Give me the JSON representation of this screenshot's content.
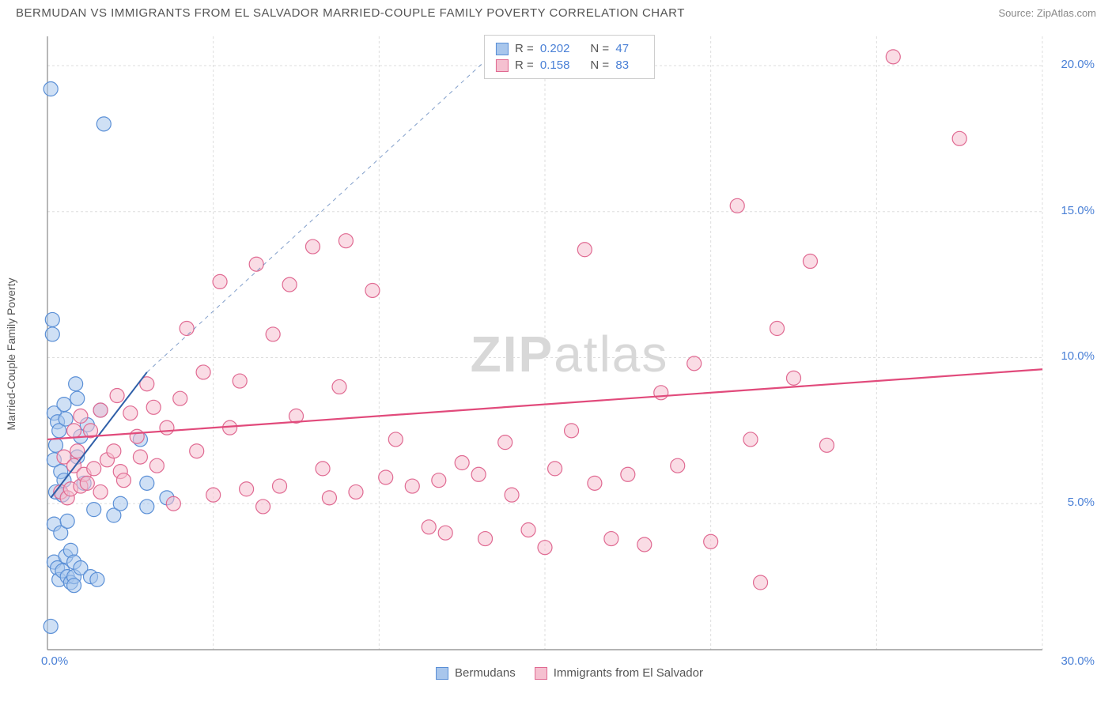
{
  "header": {
    "title": "BERMUDAN VS IMMIGRANTS FROM EL SALVADOR MARRIED-COUPLE FAMILY POVERTY CORRELATION CHART",
    "source": "Source: ZipAtlas.com"
  },
  "chart": {
    "type": "scatter",
    "watermark": "ZIPatlas",
    "y_axis_label": "Married-Couple Family Poverty",
    "background_color": "#ffffff",
    "grid_color": "#dddddd",
    "axis_line_color": "#888888",
    "tick_label_color": "#4a80d6",
    "xlim": [
      0,
      30
    ],
    "ylim": [
      0,
      21
    ],
    "x_ticks": [
      0,
      5,
      10,
      15,
      20,
      25,
      30
    ],
    "x_tick_labels": [
      "0.0%",
      "",
      "",
      "",
      "",
      "",
      "30.0%"
    ],
    "y_ticks": [
      5,
      10,
      15,
      20
    ],
    "y_tick_labels": [
      "5.0%",
      "10.0%",
      "15.0%",
      "20.0%"
    ],
    "marker_radius": 9,
    "marker_stroke_width": 1.2,
    "series": [
      {
        "name": "Bermudans",
        "fill_color": "#a8c6ec",
        "stroke_color": "#5a8fd6",
        "fill_opacity": 0.55,
        "R": "0.202",
        "N": "47",
        "trend": {
          "x1": 0.1,
          "y1": 5.2,
          "x2": 3.0,
          "y2": 9.5,
          "dash_x2": 14.0,
          "dash_y2": 21.0,
          "color": "#2f5fa8",
          "width": 2
        },
        "points": [
          [
            0.1,
            0.8
          ],
          [
            0.1,
            19.2
          ],
          [
            0.15,
            11.3
          ],
          [
            0.15,
            10.8
          ],
          [
            0.2,
            8.1
          ],
          [
            0.2,
            4.3
          ],
          [
            0.2,
            3.0
          ],
          [
            0.2,
            6.5
          ],
          [
            0.25,
            5.4
          ],
          [
            0.25,
            7.0
          ],
          [
            0.3,
            7.8
          ],
          [
            0.3,
            2.8
          ],
          [
            0.35,
            7.5
          ],
          [
            0.35,
            2.4
          ],
          [
            0.4,
            6.1
          ],
          [
            0.4,
            4.0
          ],
          [
            0.45,
            5.3
          ],
          [
            0.45,
            2.7
          ],
          [
            0.5,
            8.4
          ],
          [
            0.5,
            5.8
          ],
          [
            0.55,
            7.9
          ],
          [
            0.55,
            3.2
          ],
          [
            0.6,
            4.4
          ],
          [
            0.6,
            2.5
          ],
          [
            0.7,
            2.3
          ],
          [
            0.7,
            3.4
          ],
          [
            0.8,
            2.5
          ],
          [
            0.8,
            3.0
          ],
          [
            0.8,
            2.2
          ],
          [
            0.85,
            9.1
          ],
          [
            0.9,
            8.6
          ],
          [
            0.9,
            6.6
          ],
          [
            1.0,
            2.8
          ],
          [
            1.0,
            7.3
          ],
          [
            1.1,
            5.7
          ],
          [
            1.2,
            7.7
          ],
          [
            1.3,
            2.5
          ],
          [
            1.4,
            4.8
          ],
          [
            1.5,
            2.4
          ],
          [
            1.6,
            8.2
          ],
          [
            1.7,
            18.0
          ],
          [
            2.0,
            4.6
          ],
          [
            2.2,
            5.0
          ],
          [
            2.8,
            7.2
          ],
          [
            3.0,
            5.7
          ],
          [
            3.0,
            4.9
          ],
          [
            3.6,
            5.2
          ]
        ]
      },
      {
        "name": "Immigrants from El Salvador",
        "fill_color": "#f5c0d0",
        "stroke_color": "#e06a92",
        "fill_opacity": 0.55,
        "R": "0.158",
        "N": "83",
        "trend": {
          "x1": 0.0,
          "y1": 7.2,
          "x2": 30.0,
          "y2": 9.6,
          "color": "#e14a7b",
          "width": 2.2
        },
        "points": [
          [
            0.4,
            5.4
          ],
          [
            0.5,
            6.6
          ],
          [
            0.6,
            5.2
          ],
          [
            0.7,
            5.5
          ],
          [
            0.8,
            7.5
          ],
          [
            0.8,
            6.3
          ],
          [
            0.9,
            6.8
          ],
          [
            1.0,
            5.6
          ],
          [
            1.0,
            8.0
          ],
          [
            1.1,
            6.0
          ],
          [
            1.2,
            5.7
          ],
          [
            1.3,
            7.5
          ],
          [
            1.4,
            6.2
          ],
          [
            1.6,
            8.2
          ],
          [
            1.6,
            5.4
          ],
          [
            1.8,
            6.5
          ],
          [
            2.0,
            6.8
          ],
          [
            2.1,
            8.7
          ],
          [
            2.2,
            6.1
          ],
          [
            2.3,
            5.8
          ],
          [
            2.5,
            8.1
          ],
          [
            2.7,
            7.3
          ],
          [
            2.8,
            6.6
          ],
          [
            3.0,
            9.1
          ],
          [
            3.2,
            8.3
          ],
          [
            3.3,
            6.3
          ],
          [
            3.6,
            7.6
          ],
          [
            3.8,
            5.0
          ],
          [
            4.0,
            8.6
          ],
          [
            4.2,
            11.0
          ],
          [
            4.5,
            6.8
          ],
          [
            4.7,
            9.5
          ],
          [
            5.0,
            5.3
          ],
          [
            5.2,
            12.6
          ],
          [
            5.5,
            7.6
          ],
          [
            5.8,
            9.2
          ],
          [
            6.0,
            5.5
          ],
          [
            6.3,
            13.2
          ],
          [
            6.5,
            4.9
          ],
          [
            6.8,
            10.8
          ],
          [
            7.0,
            5.6
          ],
          [
            7.3,
            12.5
          ],
          [
            7.5,
            8.0
          ],
          [
            8.0,
            13.8
          ],
          [
            8.3,
            6.2
          ],
          [
            8.5,
            5.2
          ],
          [
            8.8,
            9.0
          ],
          [
            9.0,
            14.0
          ],
          [
            9.3,
            5.4
          ],
          [
            9.8,
            12.3
          ],
          [
            10.2,
            5.9
          ],
          [
            10.5,
            7.2
          ],
          [
            11.0,
            5.6
          ],
          [
            11.5,
            4.2
          ],
          [
            11.8,
            5.8
          ],
          [
            12.0,
            4.0
          ],
          [
            12.5,
            6.4
          ],
          [
            13.0,
            6.0
          ],
          [
            13.2,
            3.8
          ],
          [
            13.8,
            7.1
          ],
          [
            14.0,
            5.3
          ],
          [
            14.5,
            4.1
          ],
          [
            15.0,
            3.5
          ],
          [
            15.3,
            6.2
          ],
          [
            15.8,
            7.5
          ],
          [
            16.2,
            13.7
          ],
          [
            16.5,
            5.7
          ],
          [
            17.0,
            3.8
          ],
          [
            17.5,
            6.0
          ],
          [
            18.0,
            3.6
          ],
          [
            18.5,
            8.8
          ],
          [
            19.0,
            6.3
          ],
          [
            19.5,
            9.8
          ],
          [
            20.0,
            3.7
          ],
          [
            20.8,
            15.2
          ],
          [
            21.2,
            7.2
          ],
          [
            21.5,
            2.3
          ],
          [
            22.0,
            11.0
          ],
          [
            22.5,
            9.3
          ],
          [
            23.5,
            7.0
          ],
          [
            25.5,
            20.3
          ],
          [
            27.5,
            17.5
          ],
          [
            23.0,
            13.3
          ]
        ]
      }
    ],
    "legend_bottom": [
      {
        "label": "Bermudans",
        "fill": "#a8c6ec",
        "stroke": "#5a8fd6"
      },
      {
        "label": "Immigrants from El Salvador",
        "fill": "#f5c0d0",
        "stroke": "#e06a92"
      }
    ]
  }
}
